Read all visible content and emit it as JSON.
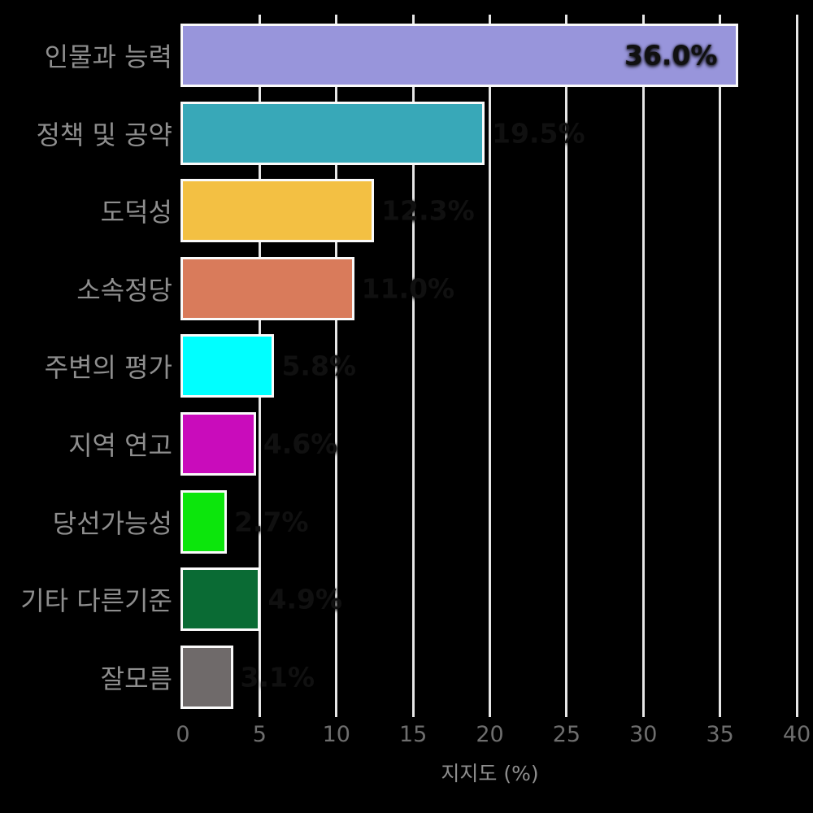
{
  "chart_data": {
    "type": "bar",
    "orientation": "horizontal",
    "title": "",
    "xlabel": "지지도 (%)",
    "xlim": [
      0,
      40
    ],
    "xticks": [
      0,
      5,
      10,
      15,
      20,
      25,
      30,
      35,
      40
    ],
    "grid": true,
    "legend": false,
    "background_color": "#000000",
    "gridline_color": "#E6E6E6",
    "bar_border_color": "#FAFAFA",
    "category_label_color": "#8E8E8E",
    "tick_label_color": "#6E6E6E",
    "axis_title_color": "#8E8E8E",
    "categories": [
      "인물과 능력",
      "정책 및 공약",
      "도덕성",
      "소속정당",
      "주변의 평가",
      "지역 연고",
      "당선가능성",
      "기타 다른기준",
      "잘모름"
    ],
    "values": [
      36.0,
      19.5,
      12.3,
      11.0,
      5.8,
      4.6,
      2.7,
      4.9,
      3.1
    ],
    "colors": [
      "#9895DB",
      "#38A8B8",
      "#F3C043",
      "#D97B5B",
      "#00FFFF",
      "#C90CBB",
      "#0CE60C",
      "#0A6B34",
      "#6F6A6A"
    ],
    "visible_bar_label": "36.0%",
    "visible_bar_label_index": 0
  }
}
